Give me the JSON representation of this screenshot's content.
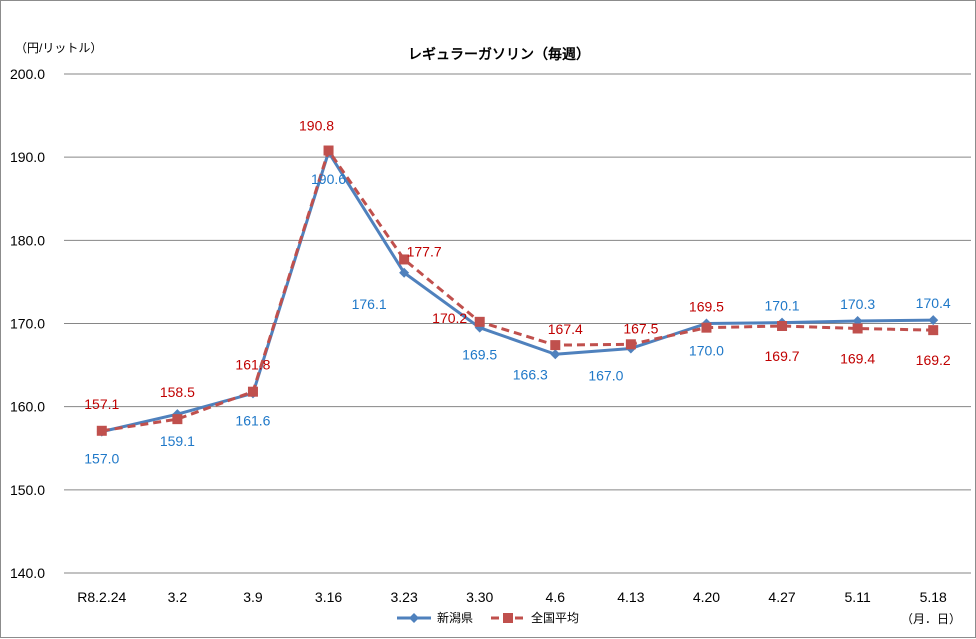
{
  "chart_data": {
    "type": "line",
    "title": "レギュラーガソリン（毎週）",
    "ylabel": "（円/リットル）",
    "xlabel": "（月．日）",
    "categories": [
      "R8.2.24",
      "3.2",
      "3.9",
      "3.16",
      "3.23",
      "3.30",
      "4.6",
      "4.13",
      "4.20",
      "4.27",
      "5.11",
      "5.18"
    ],
    "ylim": [
      140,
      200
    ],
    "yticks": [
      "140.0",
      "150.0",
      "160.0",
      "170.0",
      "180.0",
      "190.0",
      "200.0"
    ],
    "grid": true,
    "legend_position": "bottom",
    "series": [
      {
        "name": "新潟県",
        "color": "#4f81bd",
        "label_color": "#1f78c8",
        "line_style": "solid",
        "marker": "diamond",
        "values": [
          157.0,
          159.1,
          161.6,
          190.6,
          176.1,
          169.5,
          166.3,
          167.0,
          170.0,
          170.1,
          170.3,
          170.4
        ],
        "labels": [
          "157.0",
          "159.1",
          "161.6",
          "190.6",
          "176.1",
          "169.5",
          "166.3",
          "167.0",
          "170.0",
          "170.1",
          "170.3",
          "170.4"
        ]
      },
      {
        "name": "全国平均",
        "color": "#c0504d",
        "label_color": "#c00000",
        "line_style": "dashed",
        "marker": "square",
        "values": [
          157.1,
          158.5,
          161.8,
          190.8,
          177.7,
          170.2,
          167.4,
          167.5,
          169.5,
          169.7,
          169.4,
          169.2
        ],
        "labels": [
          "157.1",
          "158.5",
          "161.8",
          "190.8",
          "177.7",
          "170.2",
          "167.4",
          "167.5",
          "169.5",
          "169.7",
          "169.4",
          "169.2"
        ]
      }
    ]
  }
}
